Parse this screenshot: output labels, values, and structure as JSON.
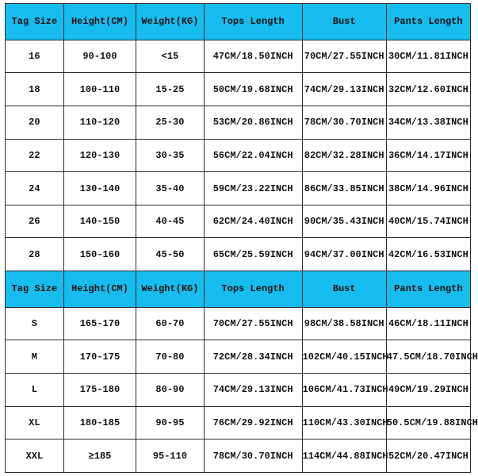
{
  "styling": {
    "header_bg": "#16bcee",
    "header_text": "#111111",
    "cell_text": "#111111",
    "border_color": "#2a2a2a",
    "body_bg": "#ffffff",
    "font_family": "Courier New",
    "header_fontsize": 12,
    "cell_fontsize": 12,
    "font_weight": "bold",
    "col_widths_pct": [
      12.5,
      15.5,
      14.5,
      21,
      18,
      18
    ]
  },
  "table": {
    "columns": [
      "Tag Size",
      "Height(CM)",
      "Weight(KG)",
      "Tops Length",
      "Bust",
      "Pants Length"
    ],
    "section1_rows": [
      [
        "16",
        "90-100",
        "<15",
        "47CM/18.50INCH",
        "70CM/27.55INCH",
        "30CM/11.81INCH"
      ],
      [
        "18",
        "100-110",
        "15-25",
        "50CM/19.68INCH",
        "74CM/29.13INCH",
        "32CM/12.60INCH"
      ],
      [
        "20",
        "110-120",
        "25-30",
        "53CM/20.86INCH",
        "78CM/30.70INCH",
        "34CM/13.38INCH"
      ],
      [
        "22",
        "120-130",
        "30-35",
        "56CM/22.04INCH",
        "82CM/32.28INCH",
        "36CM/14.17INCH"
      ],
      [
        "24",
        "130-140",
        "35-40",
        "59CM/23.22INCH",
        "86CM/33.85INCH",
        "38CM/14.96INCH"
      ],
      [
        "26",
        "140-150",
        "40-45",
        "62CM/24.40INCH",
        "90CM/35.43INCH",
        "40CM/15.74INCH"
      ],
      [
        "28",
        "150-160",
        "45-50",
        "65CM/25.59INCH",
        "94CM/37.00INCH",
        "42CM/16.53INCH"
      ]
    ],
    "section2_rows": [
      [
        "S",
        "165-170",
        "60-70",
        "70CM/27.55INCH",
        "98CM/38.58INCH",
        "46CM/18.11INCH"
      ],
      [
        "M",
        "170-175",
        "70-80",
        "72CM/28.34INCH",
        "102CM/40.15INCH",
        "47.5CM/18.70INCH"
      ],
      [
        "L",
        "175-180",
        "80-90",
        "74CM/29.13INCH",
        "106CM/41.73INCH",
        "49CM/19.29INCH"
      ],
      [
        "XL",
        "180-185",
        "90-95",
        "76CM/29.92INCH",
        "110CM/43.30INCH",
        "50.5CM/19.88INCH"
      ],
      [
        "XXL",
        "≥185",
        "95-110",
        "78CM/30.70INCH",
        "114CM/44.88INCH",
        "52CM/20.47INCH"
      ]
    ]
  }
}
